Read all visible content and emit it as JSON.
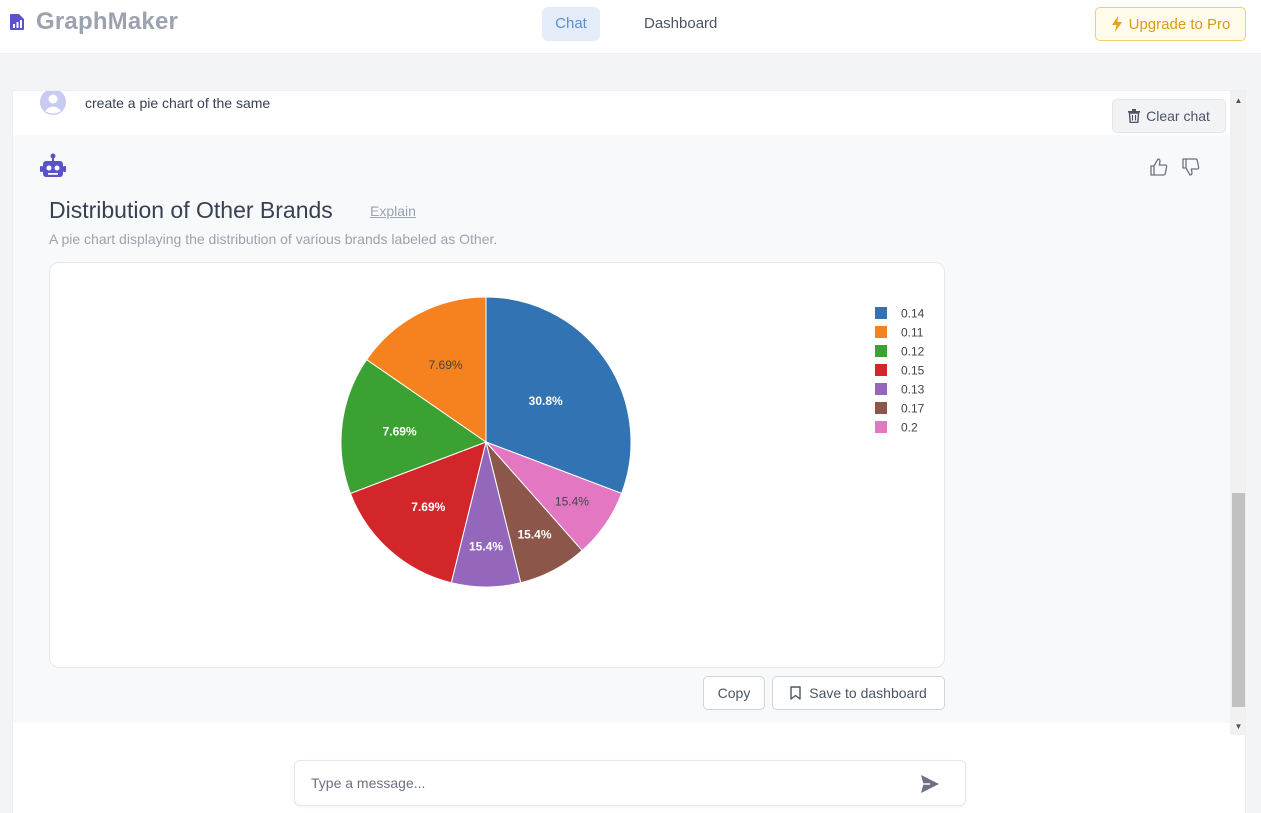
{
  "header": {
    "app_name": "GraphMaker",
    "tabs": [
      {
        "label": "Chat",
        "active": true
      },
      {
        "label": "Dashboard",
        "active": false
      }
    ],
    "upgrade_label": "Upgrade to Pro",
    "brand_color": "#6b63d6",
    "upgrade_color": "#d99a16"
  },
  "chat": {
    "user_message": "create a pie chart of the same",
    "clear_label": "Clear chat",
    "bot": {
      "chart_title": "Distribution of Other Brands",
      "explain_label": "Explain",
      "description": "A pie chart displaying the distribution of various brands labeled as Other.",
      "copy_label": "Copy",
      "save_label": "Save to dashboard"
    }
  },
  "input": {
    "placeholder": "Type a message..."
  },
  "icons": [
    "bar-chart-icon",
    "lightning-icon",
    "user-avatar-icon",
    "trash-icon",
    "robot-icon",
    "thumbs-up-icon",
    "thumbs-down-icon",
    "bookmark-icon",
    "send-icon"
  ],
  "chart_data": {
    "type": "pie",
    "categories": [
      "0.14",
      "0.11",
      "0.12",
      "0.15",
      "0.13",
      "0.17",
      "0.2"
    ],
    "values": [
      2,
      1,
      1,
      1,
      0.5,
      0.5,
      0.5
    ],
    "percent_labels": [
      "30.8%",
      "7.69%",
      "7.69%",
      "7.69%",
      "15.4%",
      "15.4%",
      "15.4%"
    ],
    "slice_order": [
      "0.14",
      "0.2",
      "0.17",
      "0.13",
      "0.15",
      "0.12",
      "0.11"
    ],
    "slice_values": [
      4,
      1,
      1,
      1,
      2,
      2,
      2
    ],
    "colors": [
      "#3274b3",
      "#f5821f",
      "#3aa132",
      "#d2262a",
      "#9467bd",
      "#8c564b",
      "#e377c2"
    ],
    "legend_labels": [
      "0.14",
      "0.11",
      "0.12",
      "0.15",
      "0.13",
      "0.17",
      "0.2"
    ],
    "legend_position": "right",
    "title": ""
  }
}
